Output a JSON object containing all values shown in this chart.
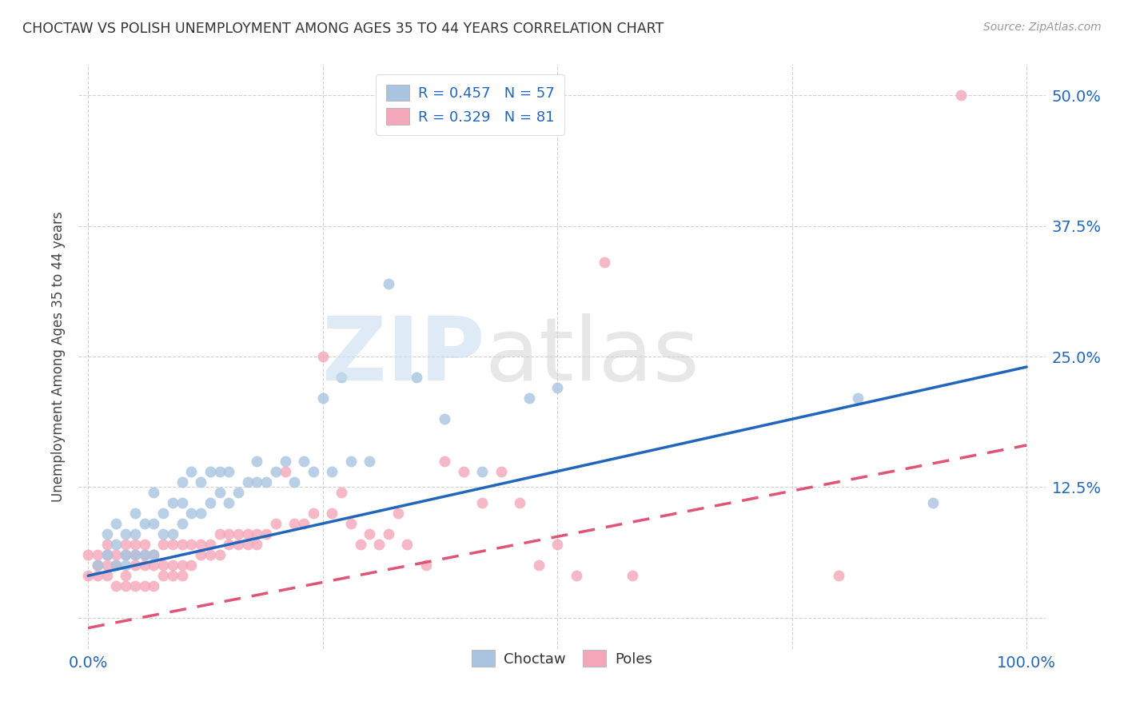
{
  "title": "CHOCTAW VS POLISH UNEMPLOYMENT AMONG AGES 35 TO 44 YEARS CORRELATION CHART",
  "source": "Source: ZipAtlas.com",
  "ylabel": "Unemployment Among Ages 35 to 44 years",
  "xlim": [
    -0.01,
    1.02
  ],
  "ylim": [
    -0.03,
    0.53
  ],
  "xticks": [
    0.0,
    0.25,
    0.5,
    0.75,
    1.0
  ],
  "xticklabels": [
    "0.0%",
    "",
    "",
    "",
    "100.0%"
  ],
  "yticks": [
    0.0,
    0.125,
    0.25,
    0.375,
    0.5
  ],
  "yticklabels": [
    "",
    "12.5%",
    "25.0%",
    "37.5%",
    "50.0%"
  ],
  "choctaw_color": "#a8c4e0",
  "poles_color": "#f4a7b9",
  "choctaw_line_color": "#2266bb",
  "poles_line_color": "#e05575",
  "background_color": "#ffffff",
  "legend_R_choctaw": "0.457",
  "legend_N_choctaw": "57",
  "legend_R_poles": "0.329",
  "legend_N_poles": "81",
  "choctaw_intercept": 0.04,
  "choctaw_slope": 0.2,
  "poles_intercept": -0.01,
  "poles_slope": 0.175,
  "choctaw_x": [
    0.01,
    0.02,
    0.02,
    0.03,
    0.03,
    0.03,
    0.04,
    0.04,
    0.04,
    0.05,
    0.05,
    0.05,
    0.06,
    0.06,
    0.07,
    0.07,
    0.07,
    0.08,
    0.08,
    0.09,
    0.09,
    0.1,
    0.1,
    0.1,
    0.11,
    0.11,
    0.12,
    0.12,
    0.13,
    0.13,
    0.14,
    0.14,
    0.15,
    0.15,
    0.16,
    0.17,
    0.18,
    0.18,
    0.19,
    0.2,
    0.21,
    0.22,
    0.23,
    0.24,
    0.25,
    0.26,
    0.27,
    0.28,
    0.3,
    0.32,
    0.35,
    0.38,
    0.42,
    0.47,
    0.5,
    0.82,
    0.9
  ],
  "choctaw_y": [
    0.05,
    0.06,
    0.08,
    0.05,
    0.07,
    0.09,
    0.05,
    0.06,
    0.08,
    0.06,
    0.08,
    0.1,
    0.06,
    0.09,
    0.06,
    0.09,
    0.12,
    0.08,
    0.1,
    0.08,
    0.11,
    0.09,
    0.11,
    0.13,
    0.1,
    0.14,
    0.1,
    0.13,
    0.11,
    0.14,
    0.12,
    0.14,
    0.11,
    0.14,
    0.12,
    0.13,
    0.13,
    0.15,
    0.13,
    0.14,
    0.15,
    0.13,
    0.15,
    0.14,
    0.21,
    0.14,
    0.23,
    0.15,
    0.15,
    0.32,
    0.23,
    0.19,
    0.14,
    0.21,
    0.22,
    0.21,
    0.11
  ],
  "poles_x": [
    0.0,
    0.0,
    0.01,
    0.01,
    0.01,
    0.02,
    0.02,
    0.02,
    0.02,
    0.03,
    0.03,
    0.03,
    0.04,
    0.04,
    0.04,
    0.04,
    0.05,
    0.05,
    0.05,
    0.05,
    0.06,
    0.06,
    0.06,
    0.06,
    0.07,
    0.07,
    0.07,
    0.08,
    0.08,
    0.08,
    0.09,
    0.09,
    0.09,
    0.1,
    0.1,
    0.1,
    0.11,
    0.11,
    0.12,
    0.12,
    0.13,
    0.13,
    0.14,
    0.14,
    0.15,
    0.15,
    0.16,
    0.16,
    0.17,
    0.17,
    0.18,
    0.18,
    0.19,
    0.2,
    0.21,
    0.22,
    0.23,
    0.24,
    0.25,
    0.26,
    0.27,
    0.28,
    0.29,
    0.3,
    0.31,
    0.32,
    0.33,
    0.34,
    0.36,
    0.38,
    0.4,
    0.42,
    0.44,
    0.46,
    0.48,
    0.5,
    0.52,
    0.55,
    0.58,
    0.8,
    0.93
  ],
  "poles_y": [
    0.04,
    0.06,
    0.04,
    0.05,
    0.06,
    0.04,
    0.05,
    0.06,
    0.07,
    0.03,
    0.05,
    0.06,
    0.03,
    0.04,
    0.06,
    0.07,
    0.03,
    0.05,
    0.06,
    0.07,
    0.03,
    0.05,
    0.06,
    0.07,
    0.03,
    0.05,
    0.06,
    0.04,
    0.05,
    0.07,
    0.04,
    0.05,
    0.07,
    0.04,
    0.05,
    0.07,
    0.05,
    0.07,
    0.06,
    0.07,
    0.06,
    0.07,
    0.06,
    0.08,
    0.07,
    0.08,
    0.07,
    0.08,
    0.07,
    0.08,
    0.07,
    0.08,
    0.08,
    0.09,
    0.14,
    0.09,
    0.09,
    0.1,
    0.25,
    0.1,
    0.12,
    0.09,
    0.07,
    0.08,
    0.07,
    0.08,
    0.1,
    0.07,
    0.05,
    0.15,
    0.14,
    0.11,
    0.14,
    0.11,
    0.05,
    0.07,
    0.04,
    0.34,
    0.04,
    0.04,
    0.5
  ]
}
